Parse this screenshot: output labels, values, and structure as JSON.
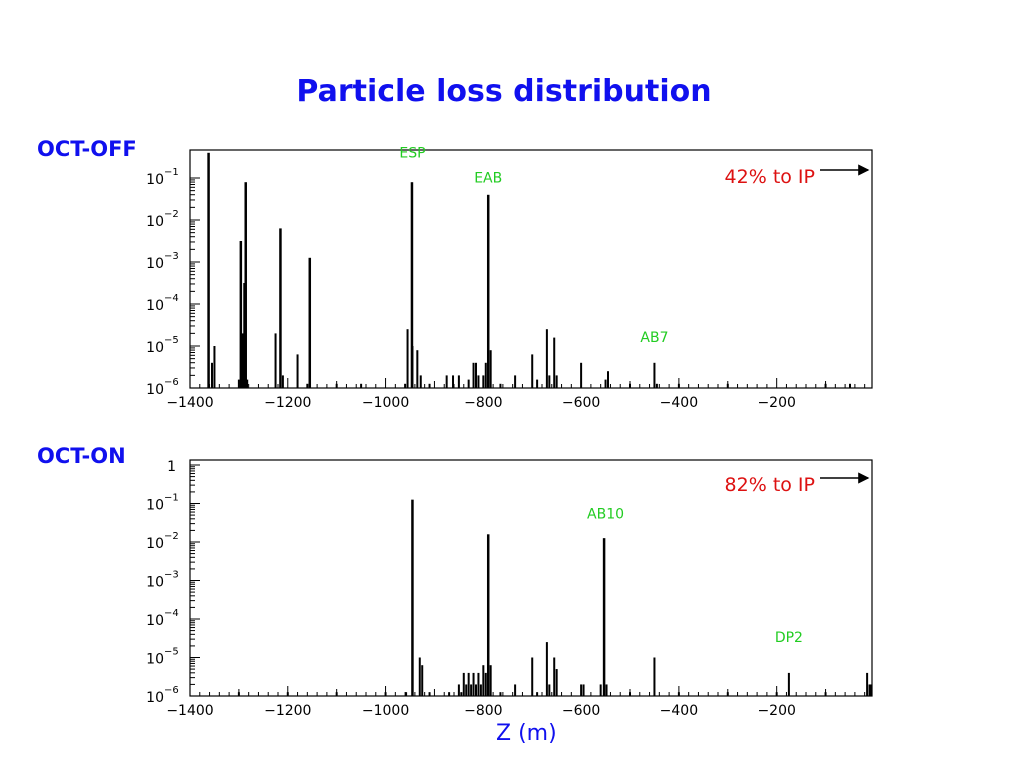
{
  "title": "Particle loss distribution",
  "xlabel": "Z (m)",
  "chart_data": [
    {
      "type": "bar",
      "panel_label": "OCT-OFF",
      "title": "",
      "xlabel": "",
      "ylabel": "",
      "x_range": [
        -1400,
        -5
      ],
      "x_ticks": [
        -1400,
        -1200,
        -1000,
        -800,
        -600,
        -400,
        -200
      ],
      "yscale": "log",
      "y_range_exp": [
        -6,
        -0.4
      ],
      "y_ticks_exp": [
        -6,
        -5,
        -4,
        -3,
        -2,
        -1
      ],
      "ip_note": "42% to IP",
      "annotations": [
        {
          "text": "ESP",
          "x": -945,
          "exp": -0.7
        },
        {
          "text": "EAB",
          "x": -790,
          "exp": -1.3
        },
        {
          "text": "AB7",
          "x": -450,
          "exp": -5.1
        }
      ],
      "bars": [
        {
          "x": -1362,
          "exp": -0.4
        },
        {
          "x": -1355,
          "exp": -5.4
        },
        {
          "x": -1350,
          "exp": -5
        },
        {
          "x": -1300,
          "exp": -5.8
        },
        {
          "x": -1296,
          "exp": -2.5
        },
        {
          "x": -1292,
          "exp": -4.7
        },
        {
          "x": -1289,
          "exp": -3.5
        },
        {
          "x": -1286,
          "exp": -1.1
        },
        {
          "x": -1283,
          "exp": -5.8
        },
        {
          "x": -1225,
          "exp": -4.7
        },
        {
          "x": -1215,
          "exp": -2.2
        },
        {
          "x": -1210,
          "exp": -5.7
        },
        {
          "x": -1180,
          "exp": -5.2
        },
        {
          "x": -1160,
          "exp": -5.9
        },
        {
          "x": -1155,
          "exp": -2.9
        },
        {
          "x": -1100,
          "exp": -5.9
        },
        {
          "x": -1050,
          "exp": -5.9
        },
        {
          "x": -960,
          "exp": -5.9
        },
        {
          "x": -955,
          "exp": -4.6
        },
        {
          "x": -946,
          "exp": -1.1
        },
        {
          "x": -945,
          "exp": -5
        },
        {
          "x": -935,
          "exp": -5.1
        },
        {
          "x": -928,
          "exp": -5.7
        },
        {
          "x": -910,
          "exp": -5.9
        },
        {
          "x": -875,
          "exp": -5.7
        },
        {
          "x": -862,
          "exp": -5.7
        },
        {
          "x": -850,
          "exp": -5.7
        },
        {
          "x": -830,
          "exp": -5.8
        },
        {
          "x": -820,
          "exp": -5.4
        },
        {
          "x": -815,
          "exp": -5.4
        },
        {
          "x": -810,
          "exp": -5.7
        },
        {
          "x": -800,
          "exp": -5.7
        },
        {
          "x": -795,
          "exp": -5.4
        },
        {
          "x": -790,
          "exp": -1.4
        },
        {
          "x": -785,
          "exp": -5.1
        },
        {
          "x": -765,
          "exp": -5.9
        },
        {
          "x": -735,
          "exp": -5.7
        },
        {
          "x": -700,
          "exp": -5.2
        },
        {
          "x": -690,
          "exp": -5.8
        },
        {
          "x": -670,
          "exp": -4.6
        },
        {
          "x": -665,
          "exp": -5.7
        },
        {
          "x": -655,
          "exp": -4.8
        },
        {
          "x": -650,
          "exp": -5.7
        },
        {
          "x": -600,
          "exp": -5.4
        },
        {
          "x": -550,
          "exp": -5.8
        },
        {
          "x": -545,
          "exp": -5.6
        },
        {
          "x": -500,
          "exp": -5.9
        },
        {
          "x": -450,
          "exp": -5.4
        },
        {
          "x": -445,
          "exp": -5.9
        },
        {
          "x": -400,
          "exp": -5.9
        },
        {
          "x": -300,
          "exp": -5.9
        },
        {
          "x": -100,
          "exp": -5.9
        },
        {
          "x": -50,
          "exp": -5.9
        }
      ]
    },
    {
      "type": "bar",
      "panel_label": "OCT-ON",
      "title": "",
      "xlabel": "",
      "ylabel": "",
      "x_range": [
        -1400,
        -5
      ],
      "x_ticks": [
        -1400,
        -1200,
        -1000,
        -800,
        -600,
        -400,
        -200
      ],
      "yscale": "log",
      "y_range_exp": [
        -6,
        0
      ],
      "y_ticks_exp": [
        -6,
        -5,
        -4,
        -3,
        -2,
        -1,
        0
      ],
      "y_tick_labels": {
        "0": "1"
      },
      "ip_note": "82% to IP",
      "annotations": [
        {
          "text": "AB10",
          "x": -550,
          "exp": -1.6
        },
        {
          "text": "DP2",
          "x": -175,
          "exp": -4.8
        }
      ],
      "bars": [
        {
          "x": -1300,
          "exp": -5.9
        },
        {
          "x": -1200,
          "exp": -5.9
        },
        {
          "x": -1100,
          "exp": -5.9
        },
        {
          "x": -1000,
          "exp": -5.9
        },
        {
          "x": -958,
          "exp": -5.9
        },
        {
          "x": -945,
          "exp": -0.9
        },
        {
          "x": -930,
          "exp": -5
        },
        {
          "x": -925,
          "exp": -5.2
        },
        {
          "x": -910,
          "exp": -5.9
        },
        {
          "x": -870,
          "exp": -5.9
        },
        {
          "x": -850,
          "exp": -5.7
        },
        {
          "x": -845,
          "exp": -5.9
        },
        {
          "x": -840,
          "exp": -5.4
        },
        {
          "x": -835,
          "exp": -5.7
        },
        {
          "x": -830,
          "exp": -5.4
        },
        {
          "x": -825,
          "exp": -5.7
        },
        {
          "x": -820,
          "exp": -5.4
        },
        {
          "x": -815,
          "exp": -5.7
        },
        {
          "x": -810,
          "exp": -5.4
        },
        {
          "x": -805,
          "exp": -5.7
        },
        {
          "x": -800,
          "exp": -5.2
        },
        {
          "x": -795,
          "exp": -5.4
        },
        {
          "x": -790,
          "exp": -1.8
        },
        {
          "x": -785,
          "exp": -5.2
        },
        {
          "x": -765,
          "exp": -5.9
        },
        {
          "x": -735,
          "exp": -5.7
        },
        {
          "x": -700,
          "exp": -5
        },
        {
          "x": -690,
          "exp": -5.9
        },
        {
          "x": -670,
          "exp": -4.6
        },
        {
          "x": -665,
          "exp": -5.7
        },
        {
          "x": -655,
          "exp": -5
        },
        {
          "x": -650,
          "exp": -5.3
        },
        {
          "x": -600,
          "exp": -5.7
        },
        {
          "x": -595,
          "exp": -5.7
        },
        {
          "x": -560,
          "exp": -5.7
        },
        {
          "x": -553,
          "exp": -1.9
        },
        {
          "x": -548,
          "exp": -5.7
        },
        {
          "x": -500,
          "exp": -5.9
        },
        {
          "x": -450,
          "exp": -5
        },
        {
          "x": -400,
          "exp": -5.9
        },
        {
          "x": -300,
          "exp": -5.9
        },
        {
          "x": -200,
          "exp": -5.9
        },
        {
          "x": -175,
          "exp": -5.4
        },
        {
          "x": -100,
          "exp": -5.9
        },
        {
          "x": -15,
          "exp": -5.4
        },
        {
          "x": -10,
          "exp": -5.7
        },
        {
          "x": -6,
          "exp": -5.7
        }
      ]
    }
  ]
}
